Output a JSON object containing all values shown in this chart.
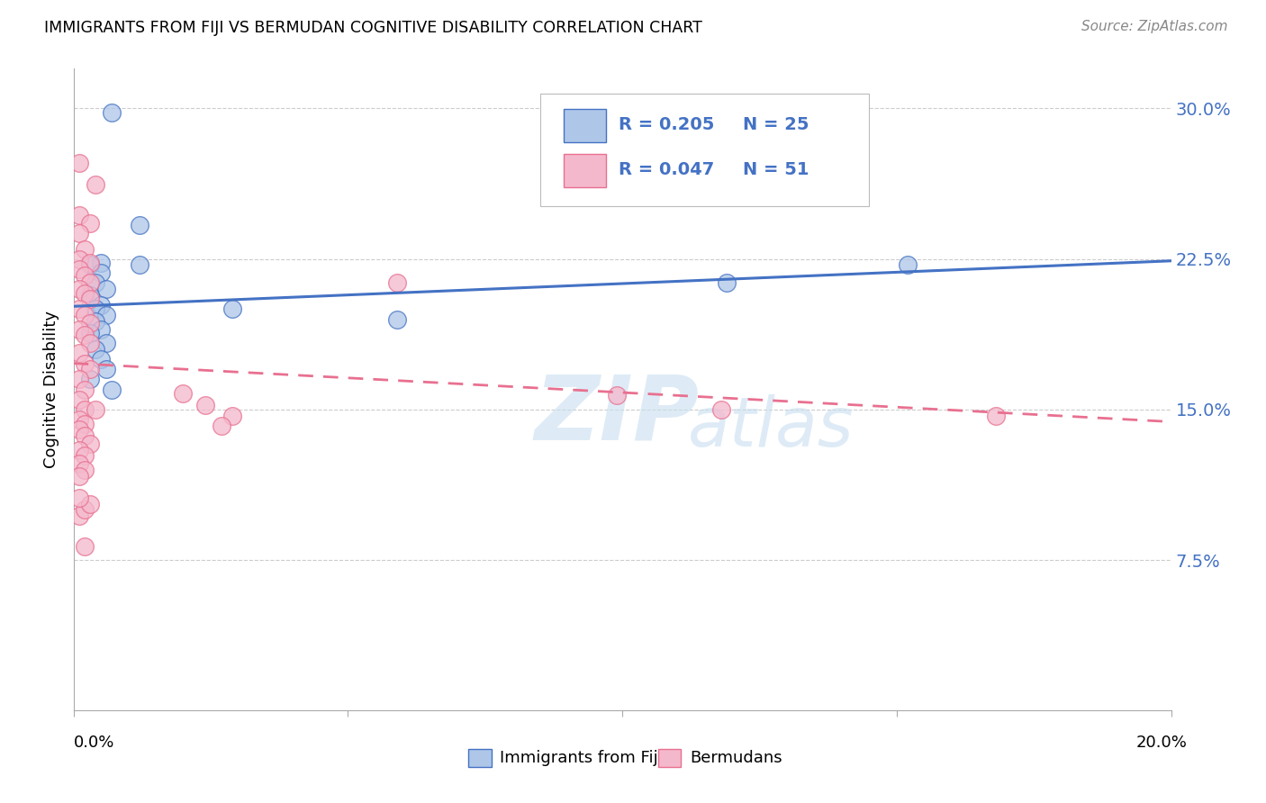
{
  "title": "IMMIGRANTS FROM FIJI VS BERMUDAN COGNITIVE DISABILITY CORRELATION CHART",
  "source": "Source: ZipAtlas.com",
  "ylabel": "Cognitive Disability",
  "ytick_labels": [
    "7.5%",
    "15.0%",
    "22.5%",
    "30.0%"
  ],
  "ytick_values": [
    0.075,
    0.15,
    0.225,
    0.3
  ],
  "xlim": [
    0.0,
    0.2
  ],
  "ylim": [
    0.0,
    0.32
  ],
  "fiji_color": "#aec6e8",
  "bermuda_color": "#f4b8cc",
  "fiji_edge_color": "#4472c4",
  "bermuda_edge_color": "#e87090",
  "fiji_line_color": "#4472c4",
  "bermuda_line_color": "#e87090",
  "watermark_zip": "ZIP",
  "watermark_atlas": "atlas",
  "fiji_points": [
    [
      0.007,
      0.298
    ],
    [
      0.012,
      0.242
    ],
    [
      0.012,
      0.222
    ],
    [
      0.005,
      0.223
    ],
    [
      0.003,
      0.222
    ],
    [
      0.005,
      0.218
    ],
    [
      0.004,
      0.213
    ],
    [
      0.006,
      0.21
    ],
    [
      0.003,
      0.207
    ],
    [
      0.005,
      0.202
    ],
    [
      0.004,
      0.2
    ],
    [
      0.006,
      0.197
    ],
    [
      0.004,
      0.194
    ],
    [
      0.005,
      0.19
    ],
    [
      0.003,
      0.188
    ],
    [
      0.006,
      0.183
    ],
    [
      0.004,
      0.18
    ],
    [
      0.005,
      0.175
    ],
    [
      0.006,
      0.17
    ],
    [
      0.003,
      0.165
    ],
    [
      0.007,
      0.16
    ],
    [
      0.029,
      0.2
    ],
    [
      0.059,
      0.195
    ],
    [
      0.119,
      0.213
    ],
    [
      0.152,
      0.222
    ]
  ],
  "bermuda_points": [
    [
      0.001,
      0.273
    ],
    [
      0.004,
      0.262
    ],
    [
      0.001,
      0.247
    ],
    [
      0.003,
      0.243
    ],
    [
      0.001,
      0.238
    ],
    [
      0.002,
      0.23
    ],
    [
      0.001,
      0.225
    ],
    [
      0.003,
      0.223
    ],
    [
      0.001,
      0.22
    ],
    [
      0.002,
      0.217
    ],
    [
      0.003,
      0.213
    ],
    [
      0.001,
      0.21
    ],
    [
      0.002,
      0.208
    ],
    [
      0.003,
      0.205
    ],
    [
      0.001,
      0.2
    ],
    [
      0.002,
      0.197
    ],
    [
      0.003,
      0.193
    ],
    [
      0.001,
      0.19
    ],
    [
      0.002,
      0.187
    ],
    [
      0.003,
      0.183
    ],
    [
      0.001,
      0.178
    ],
    [
      0.002,
      0.173
    ],
    [
      0.003,
      0.17
    ],
    [
      0.001,
      0.165
    ],
    [
      0.002,
      0.16
    ],
    [
      0.001,
      0.155
    ],
    [
      0.002,
      0.15
    ],
    [
      0.001,
      0.145
    ],
    [
      0.002,
      0.143
    ],
    [
      0.001,
      0.14
    ],
    [
      0.002,
      0.137
    ],
    [
      0.003,
      0.133
    ],
    [
      0.001,
      0.13
    ],
    [
      0.002,
      0.127
    ],
    [
      0.001,
      0.123
    ],
    [
      0.002,
      0.12
    ],
    [
      0.001,
      0.117
    ],
    [
      0.024,
      0.152
    ],
    [
      0.029,
      0.147
    ],
    [
      0.027,
      0.142
    ],
    [
      0.059,
      0.213
    ],
    [
      0.099,
      0.157
    ],
    [
      0.118,
      0.15
    ],
    [
      0.168,
      0.147
    ],
    [
      0.002,
      0.082
    ],
    [
      0.001,
      0.097
    ],
    [
      0.002,
      0.1
    ],
    [
      0.003,
      0.103
    ],
    [
      0.001,
      0.106
    ],
    [
      0.02,
      0.158
    ],
    [
      0.004,
      0.15
    ]
  ]
}
